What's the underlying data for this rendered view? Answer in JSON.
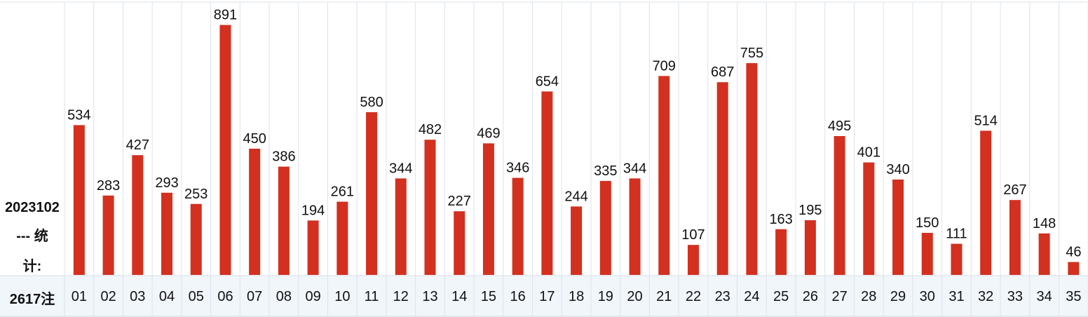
{
  "chart_data": {
    "type": "bar",
    "issue": "2023102",
    "label": "--- 统计:",
    "total": "2617注",
    "color": "#d3301f",
    "categories": [
      "01",
      "02",
      "03",
      "04",
      "05",
      "06",
      "07",
      "08",
      "09",
      "10",
      "11",
      "12",
      "13",
      "14",
      "15",
      "16",
      "17",
      "18",
      "19",
      "20",
      "21",
      "22",
      "23",
      "24",
      "25",
      "26",
      "27",
      "28",
      "29",
      "30",
      "31",
      "32",
      "33",
      "34",
      "35"
    ],
    "values": [
      534,
      283,
      427,
      293,
      253,
      891,
      450,
      386,
      194,
      261,
      580,
      344,
      482,
      227,
      469,
      346,
      654,
      244,
      335,
      344,
      709,
      107,
      687,
      755,
      163,
      195,
      495,
      401,
      340,
      150,
      111,
      514,
      267,
      148,
      46
    ]
  }
}
